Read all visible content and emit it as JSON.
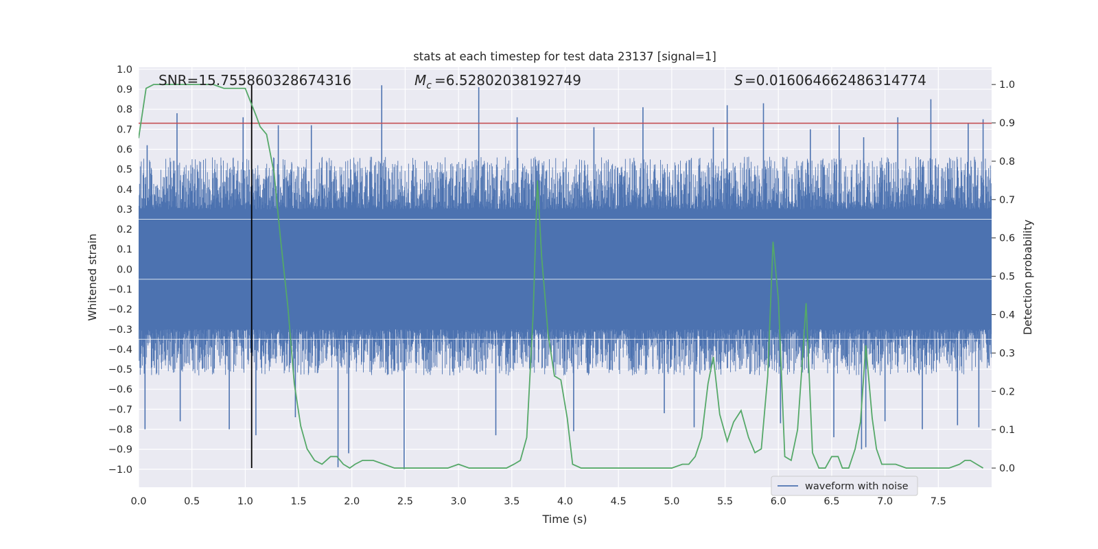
{
  "chart_data": {
    "type": "line",
    "title": "stats at each timestep for test data 23137 [signal=1]",
    "xlabel": "Time (s)",
    "ylabel": "Whitened strain",
    "y2label": "Detection probability",
    "xlim": [
      0,
      8
    ],
    "ylim": [
      -1.09,
      1.01
    ],
    "y2lim": [
      -0.05,
      1.045
    ],
    "x_ticks": [
      "0.0",
      "0.5",
      "1.0",
      "1.5",
      "2.0",
      "2.5",
      "3.0",
      "3.5",
      "4.0",
      "4.5",
      "5.0",
      "5.5",
      "6.0",
      "6.5",
      "7.0",
      "7.5"
    ],
    "y_ticks": [
      "1.0",
      "0.9",
      "0.8",
      "0.7",
      "0.6",
      "0.5",
      "0.4",
      "0.3",
      "0.2",
      "0.1",
      "0.0",
      "−0.1",
      "−0.2",
      "−0.3",
      "−0.4",
      "−0.5",
      "−0.6",
      "−0.7",
      "−0.8",
      "−0.9",
      "−1.0"
    ],
    "y2_ticks": [
      "1.0",
      "0.9",
      "0.8",
      "0.7",
      "0.6",
      "0.5",
      "0.4",
      "0.3",
      "0.2",
      "0.1",
      "0.0"
    ],
    "grid": true,
    "legend_position": "lower-right",
    "annotations": {
      "snr": "SNR=15.755860328674316",
      "mc": "=6.52802038192749",
      "s": "=0.016064662486314774"
    },
    "threshold_y": 0.73,
    "event_time": 1.06,
    "series": [
      {
        "name": "waveform with noise",
        "axis": "left",
        "color": "#4c72b0",
        "envelope": {
          "core": 0.3,
          "upper_typical": 0.55,
          "lower_typical": -0.52
        },
        "peaks": [
          [
            0.08,
            0.62
          ],
          [
            0.36,
            0.78
          ],
          [
            0.98,
            0.76
          ],
          [
            1.31,
            0.72
          ],
          [
            1.62,
            0.72
          ],
          [
            2.28,
            0.92
          ],
          [
            3.19,
            0.91
          ],
          [
            3.55,
            0.76
          ],
          [
            4.27,
            0.71
          ],
          [
            4.73,
            0.81
          ],
          [
            5.39,
            0.71
          ],
          [
            5.52,
            0.82
          ],
          [
            5.86,
            0.83
          ],
          [
            6.3,
            0.7
          ],
          [
            6.57,
            0.72
          ],
          [
            6.8,
            0.66
          ],
          [
            7.12,
            0.76
          ],
          [
            7.43,
            0.85
          ],
          [
            7.78,
            0.73
          ],
          [
            7.92,
            0.75
          ]
        ],
        "troughs": [
          [
            0.06,
            -0.8
          ],
          [
            0.39,
            -0.76
          ],
          [
            0.85,
            -0.8
          ],
          [
            1.1,
            -0.83
          ],
          [
            1.47,
            -0.74
          ],
          [
            1.87,
            -0.99
          ],
          [
            1.97,
            -0.92
          ],
          [
            2.49,
            -1.0
          ],
          [
            3.35,
            -0.83
          ],
          [
            4.08,
            -0.81
          ],
          [
            4.93,
            -0.72
          ],
          [
            5.21,
            -0.79
          ],
          [
            6.02,
            -0.77
          ],
          [
            6.52,
            -0.84
          ],
          [
            6.78,
            -0.9
          ],
          [
            6.82,
            -0.89
          ],
          [
            7.0,
            -0.76
          ],
          [
            7.35,
            -0.8
          ],
          [
            7.68,
            -0.78
          ],
          [
            7.88,
            -0.79
          ]
        ]
      },
      {
        "name": "",
        "axis": "right",
        "color": "#55a868",
        "x": [
          0.0,
          0.07,
          0.14,
          0.2,
          0.3,
          0.4,
          0.5,
          0.6,
          0.7,
          0.8,
          0.9,
          1.0,
          1.1,
          1.14,
          1.2,
          1.27,
          1.33,
          1.4,
          1.46,
          1.52,
          1.58,
          1.65,
          1.72,
          1.8,
          1.86,
          1.92,
          1.98,
          2.03,
          2.1,
          2.2,
          2.3,
          2.4,
          2.5,
          2.6,
          2.7,
          2.8,
          2.9,
          3.0,
          3.1,
          3.2,
          3.3,
          3.4,
          3.45,
          3.52,
          3.58,
          3.64,
          3.7,
          3.74,
          3.78,
          3.84,
          3.9,
          3.96,
          4.02,
          4.07,
          4.15,
          4.3,
          4.5,
          4.7,
          4.9,
          5.0,
          5.1,
          5.16,
          5.22,
          5.28,
          5.34,
          5.39,
          5.45,
          5.52,
          5.58,
          5.65,
          5.72,
          5.78,
          5.84,
          5.9,
          5.95,
          6.0,
          6.06,
          6.12,
          6.18,
          6.22,
          6.26,
          6.32,
          6.38,
          6.44,
          6.5,
          6.56,
          6.6,
          6.66,
          6.72,
          6.77,
          6.82,
          6.88,
          6.92,
          6.97,
          7.03,
          7.1,
          7.2,
          7.3,
          7.45,
          7.6,
          7.7,
          7.75,
          7.8,
          7.86,
          7.92
        ],
        "y": [
          0.86,
          0.99,
          1.0,
          1.0,
          1.0,
          1.0,
          1.0,
          1.0,
          1.0,
          0.99,
          0.99,
          0.99,
          0.92,
          0.89,
          0.87,
          0.77,
          0.6,
          0.42,
          0.22,
          0.11,
          0.05,
          0.02,
          0.01,
          0.03,
          0.03,
          0.01,
          0.0,
          0.01,
          0.02,
          0.02,
          0.01,
          0.0,
          0.0,
          0.0,
          0.0,
          0.0,
          0.0,
          0.01,
          0.0,
          0.0,
          0.0,
          0.0,
          0.0,
          0.01,
          0.02,
          0.08,
          0.4,
          0.75,
          0.55,
          0.35,
          0.24,
          0.23,
          0.13,
          0.01,
          0.0,
          0.0,
          0.0,
          0.0,
          0.0,
          0.0,
          0.01,
          0.01,
          0.03,
          0.08,
          0.22,
          0.29,
          0.14,
          0.07,
          0.12,
          0.15,
          0.08,
          0.04,
          0.05,
          0.24,
          0.59,
          0.44,
          0.03,
          0.02,
          0.1,
          0.26,
          0.43,
          0.04,
          0.0,
          0.0,
          0.03,
          0.03,
          0.0,
          0.0,
          0.05,
          0.12,
          0.32,
          0.13,
          0.05,
          0.01,
          0.01,
          0.01,
          0.0,
          0.0,
          0.0,
          0.0,
          0.01,
          0.02,
          0.02,
          0.01,
          0.0
        ]
      }
    ]
  }
}
